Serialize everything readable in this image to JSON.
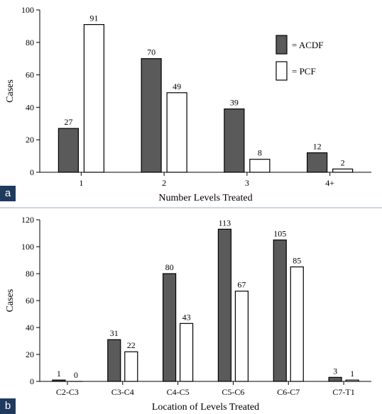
{
  "colors": {
    "acdf": "#5a5a5a",
    "pcf": "#ffffff",
    "axis": "#000000",
    "tag_bg": "#1f3a5f"
  },
  "panels": [
    {
      "tag": "a"
    },
    {
      "tag": "b"
    }
  ],
  "chart_data": [
    {
      "type": "bar",
      "xlabel": "Number Levels Treated",
      "ylabel": "Cases",
      "categories": [
        "1",
        "2",
        "3",
        "4+"
      ],
      "ylim": [
        0,
        100
      ],
      "yticks": [
        0,
        20,
        40,
        60,
        80,
        100
      ],
      "legend_position": "top-right",
      "series": [
        {
          "name": "= ACDF",
          "values": [
            27,
            70,
            39,
            12
          ]
        },
        {
          "name": "= PCF",
          "values": [
            91,
            49,
            8,
            2
          ]
        }
      ]
    },
    {
      "type": "bar",
      "xlabel": "Location of Levels Treated",
      "ylabel": "Cases",
      "categories": [
        "C2-C3",
        "C3-C4",
        "C4-C5",
        "C5-C6",
        "C6-C7",
        "C7-T1"
      ],
      "ylim": [
        0,
        120
      ],
      "yticks": [
        0,
        20,
        40,
        60,
        80,
        100,
        120
      ],
      "series": [
        {
          "name": "ACDF",
          "values": [
            1,
            31,
            80,
            113,
            105,
            3
          ]
        },
        {
          "name": "PCF",
          "values": [
            0,
            22,
            43,
            67,
            85,
            1
          ]
        }
      ]
    }
  ]
}
